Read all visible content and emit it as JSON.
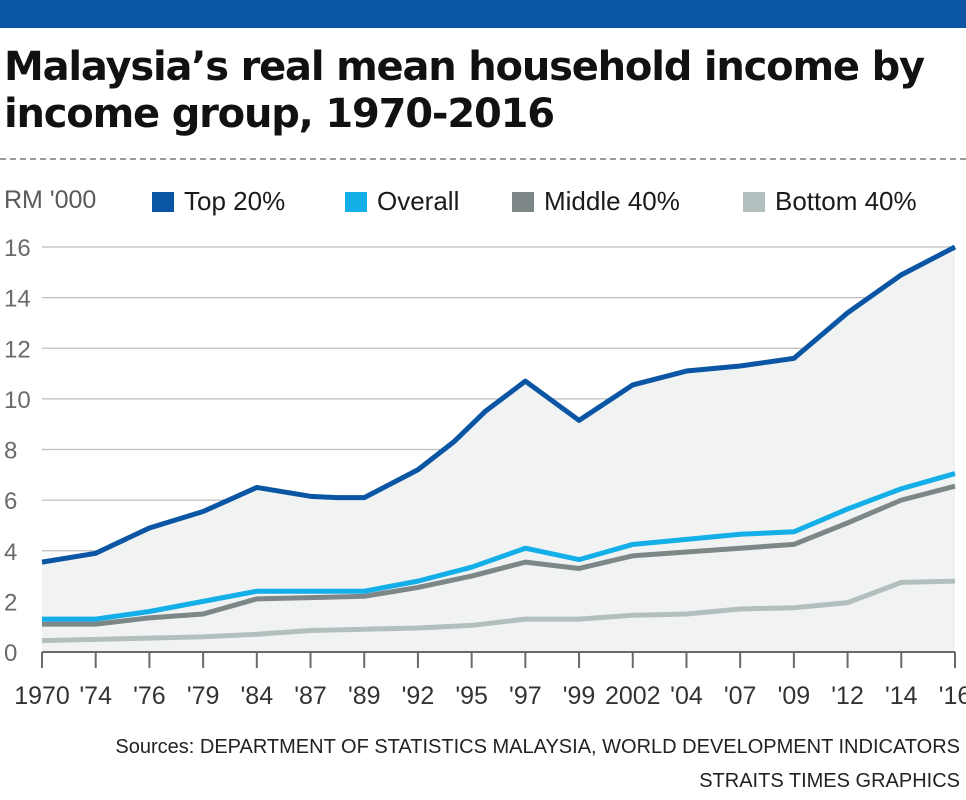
{
  "title": "Malaysia’s real mean household income by income group, 1970-2016",
  "unit_label": "RM '000",
  "source": "Sources: DEPARTMENT OF STATISTICS MALAYSIA, WORLD DEVELOPMENT INDICATORS",
  "credit": "STRAITS TIMES GRAPHICS",
  "colors": {
    "top_bar": "#0b56a4",
    "top20": "#0b56a4",
    "overall": "#14aee8",
    "middle40": "#7d8788",
    "bottom40": "#b3bfbe",
    "area_fill": "#f1f3f3",
    "grid": "#bdbdbd"
  },
  "chart_data": {
    "type": "line",
    "x_labels": [
      "1970",
      "'74",
      "'76",
      "'79",
      "'84",
      "'87",
      "'89",
      "'92",
      "'95",
      "'97",
      "'99",
      "2002",
      "'04",
      "'07",
      "'09",
      "'12",
      "'14",
      "'16"
    ],
    "x": [
      1970,
      1974,
      1976,
      1979,
      1984,
      1987,
      1989,
      1992,
      1995,
      1997,
      1999,
      2002,
      2004,
      2007,
      2009,
      2012,
      2014,
      2016
    ],
    "ylim": [
      0,
      16
    ],
    "yticks": [
      0,
      2,
      4,
      6,
      8,
      10,
      12,
      14,
      16
    ],
    "ylabel": "RM '000",
    "grid": true,
    "legend_position": "top",
    "series": [
      {
        "name": "Top 20%",
        "color": "#0b56a4",
        "filled": true,
        "values": [
          3.55,
          3.9,
          4.9,
          5.55,
          6.5,
          6.15,
          6.1,
          6.1,
          7.2,
          8.3,
          9.5,
          10.7,
          9.15,
          10.55,
          11.1,
          11.3,
          11.6,
          13.4,
          14.9,
          16.0
        ],
        "x": [
          1970,
          1974,
          1976,
          1979,
          1984,
          1987,
          1988,
          1989,
          1992,
          1994,
          1995.5,
          1997,
          1999,
          2002,
          2004,
          2007,
          2009,
          2012,
          2014,
          2016
        ]
      },
      {
        "name": "Overall",
        "color": "#14aee8",
        "values": [
          1.3,
          1.3,
          1.6,
          2.0,
          2.4,
          2.4,
          2.4,
          2.8,
          3.35,
          4.1,
          3.65,
          4.25,
          4.45,
          4.65,
          4.75,
          5.65,
          6.45,
          7.05
        ]
      },
      {
        "name": "Middle 40%",
        "color": "#7d8788",
        "values": [
          1.1,
          1.1,
          1.35,
          1.5,
          2.1,
          2.15,
          2.2,
          2.55,
          3.0,
          3.55,
          3.3,
          3.8,
          3.95,
          4.1,
          4.25,
          5.1,
          6.0,
          6.55
        ]
      },
      {
        "name": "Bottom 40%",
        "color": "#b3bfbe",
        "values": [
          0.45,
          0.5,
          0.55,
          0.6,
          0.7,
          0.85,
          0.9,
          0.95,
          1.05,
          1.3,
          1.3,
          1.45,
          1.5,
          1.7,
          1.75,
          1.95,
          2.75,
          2.8
        ]
      }
    ]
  }
}
